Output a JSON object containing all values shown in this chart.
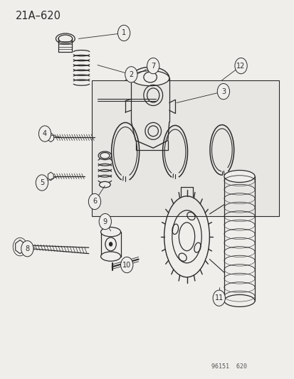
{
  "title": "21A–620",
  "watermark": "96151  620",
  "bg": "#f0eeeb",
  "lc": "#2a2a2a",
  "lw": 0.9,
  "label_fs": 7.0,
  "title_fs": 10.5,
  "label_positions": {
    "1": [
      0.42,
      0.915,
      0.33,
      0.895
    ],
    "2": [
      0.42,
      0.805,
      0.35,
      0.815
    ],
    "3": [
      0.75,
      0.755,
      0.62,
      0.74
    ],
    "4": [
      0.15,
      0.645,
      0.22,
      0.638
    ],
    "5": [
      0.14,
      0.525,
      0.21,
      0.535
    ],
    "6": [
      0.32,
      0.475,
      0.34,
      0.505
    ],
    "7": [
      0.52,
      0.825,
      0.5,
      0.79
    ],
    "8": [
      0.09,
      0.345,
      0.14,
      0.348
    ],
    "9": [
      0.35,
      0.415,
      0.38,
      0.385
    ],
    "10": [
      0.43,
      0.305,
      0.45,
      0.325
    ],
    "11": [
      0.74,
      0.215,
      0.76,
      0.245
    ],
    "12": [
      0.82,
      0.825,
      0.79,
      0.79
    ]
  }
}
